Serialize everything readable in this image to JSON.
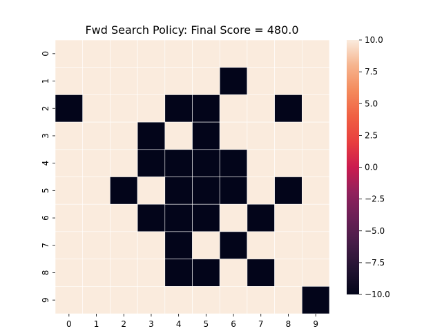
{
  "chart_data": {
    "type": "heatmap",
    "title": "Fwd Search Policy: Final Score = 480.0",
    "x_ticks": [
      "0",
      "1",
      "2",
      "3",
      "4",
      "5",
      "6",
      "7",
      "8",
      "9"
    ],
    "y_ticks": [
      "0",
      "1",
      "2",
      "3",
      "4",
      "5",
      "6",
      "7",
      "8",
      "9"
    ],
    "values": [
      [
        10,
        10,
        10,
        10,
        10,
        10,
        10,
        10,
        10,
        10
      ],
      [
        10,
        10,
        10,
        10,
        10,
        10,
        -10,
        10,
        10,
        10
      ],
      [
        -10,
        10,
        10,
        10,
        -10,
        -10,
        10,
        10,
        -10,
        10
      ],
      [
        10,
        10,
        10,
        -10,
        10,
        -10,
        10,
        10,
        10,
        10
      ],
      [
        10,
        10,
        10,
        -10,
        -10,
        -10,
        -10,
        10,
        10,
        10
      ],
      [
        10,
        10,
        -10,
        10,
        -10,
        -10,
        -10,
        10,
        -10,
        10
      ],
      [
        10,
        10,
        10,
        -10,
        -10,
        -10,
        10,
        -10,
        10,
        10
      ],
      [
        10,
        10,
        10,
        10,
        -10,
        10,
        -10,
        10,
        10,
        10
      ],
      [
        10,
        10,
        10,
        10,
        -10,
        -10,
        10,
        -10,
        10,
        10
      ],
      [
        10,
        10,
        10,
        10,
        10,
        10,
        10,
        10,
        10,
        -10
      ]
    ],
    "colorbar": {
      "vmin": -10.0,
      "vmax": 10.0,
      "tick_labels": [
        "10.0",
        "7.5",
        "5.0",
        "2.5",
        "0.0",
        "−2.5",
        "−5.0",
        "−7.5",
        "−10.0"
      ],
      "tick_values": [
        10.0,
        7.5,
        5.0,
        2.5,
        0.0,
        -2.5,
        -5.0,
        -7.5,
        -10.0
      ]
    },
    "colors": {
      "high": "#faebdd",
      "low": "#03051a",
      "cell_border": "#ffffff"
    }
  }
}
